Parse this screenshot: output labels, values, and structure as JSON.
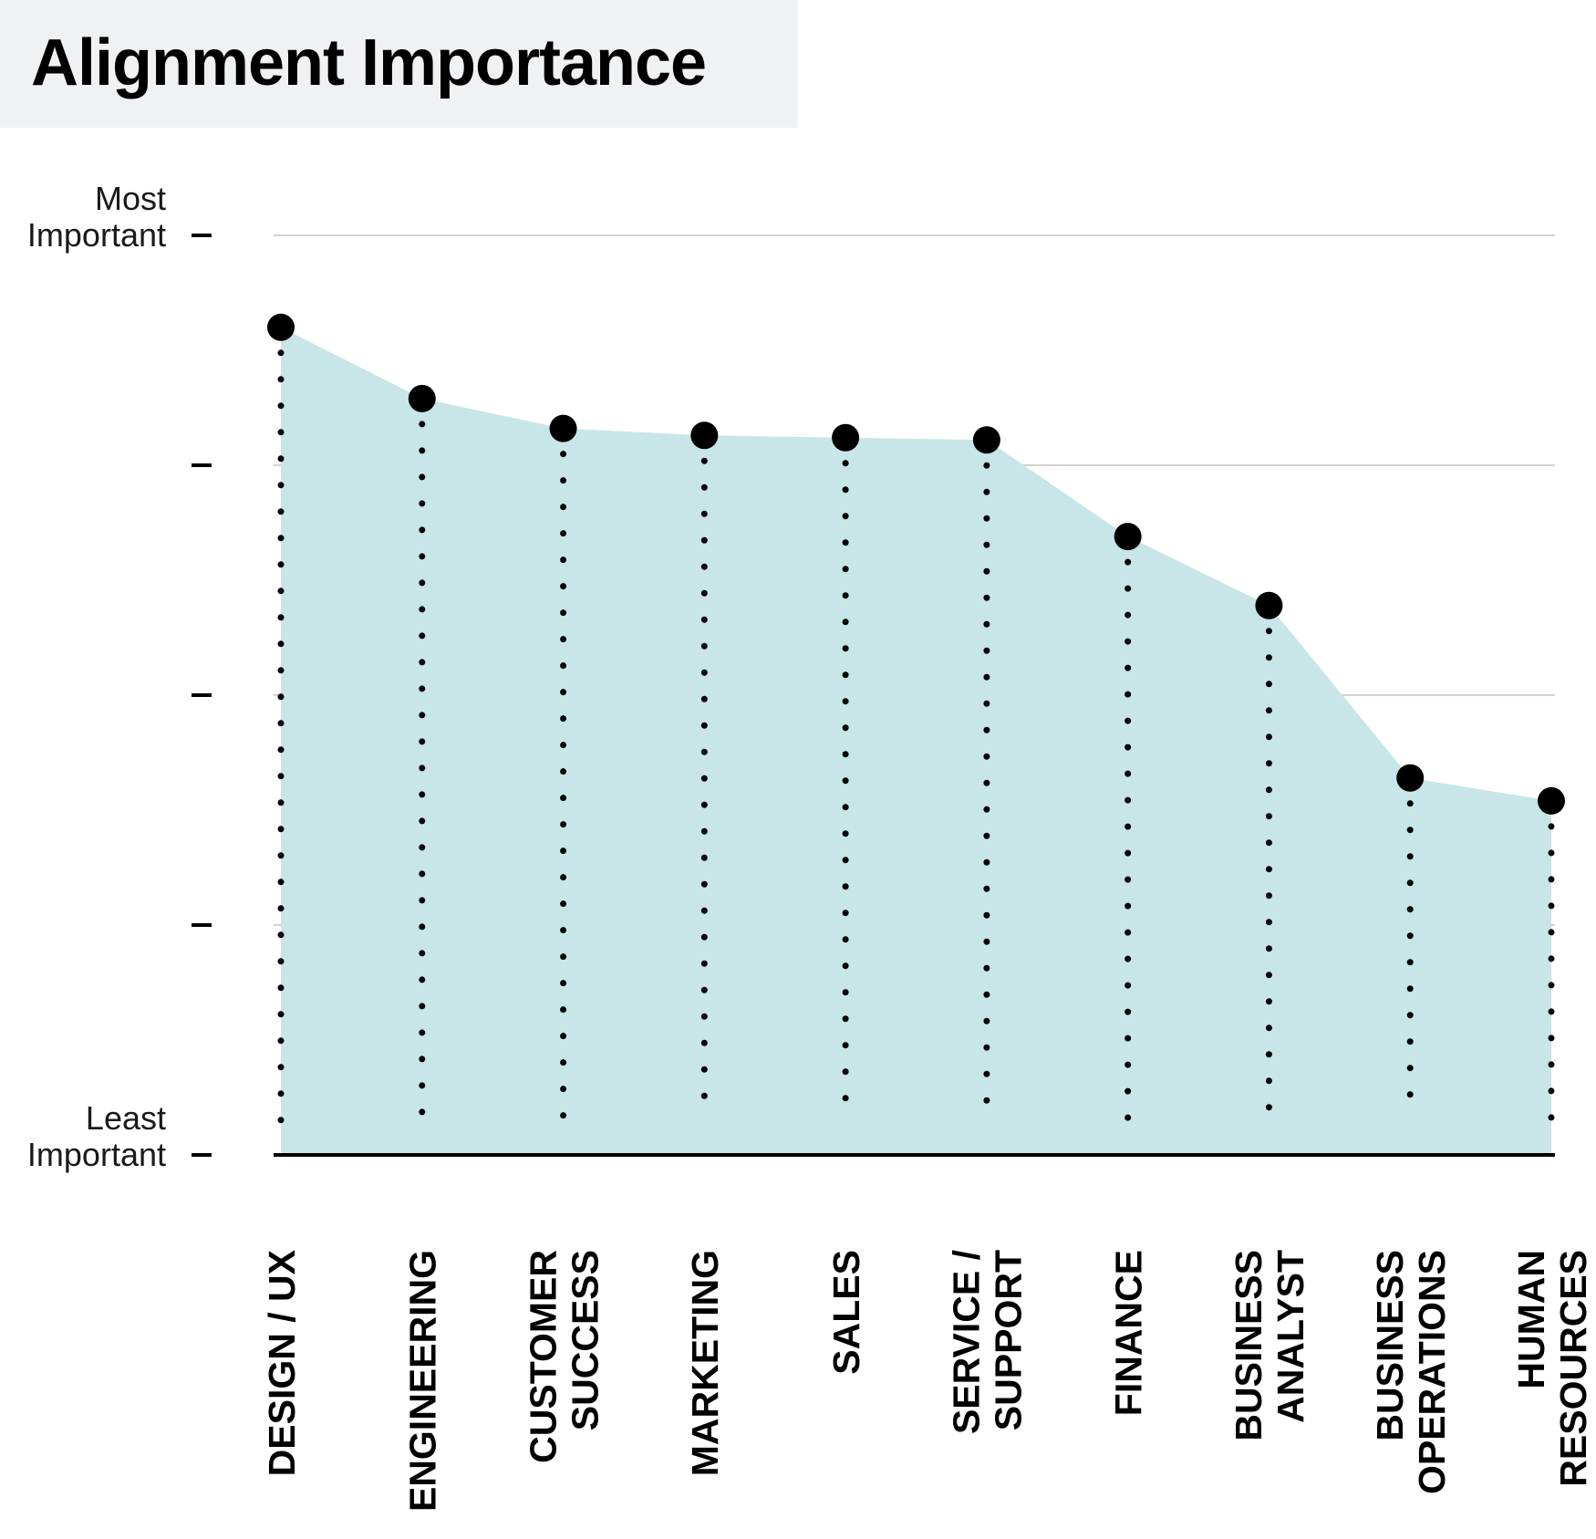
{
  "title": "Alignment Importance",
  "chart_data": {
    "type": "area",
    "title": "Alignment Importance",
    "xlabel": "",
    "ylabel": "",
    "categories": [
      "DESIGN / UX",
      "ENGINEERING",
      "CUSTOMER SUCCESS",
      "MARKETING",
      "SALES",
      "SERVICE / SUPPORT",
      "FINANCE",
      "BUSINESS ANALYST",
      "BUSINESS OPERATIONS",
      "HUMAN RESOURCES"
    ],
    "category_lines": [
      [
        "DESIGN / UX"
      ],
      [
        "ENGINEERING"
      ],
      [
        "CUSTOMER",
        "SUCCESS"
      ],
      [
        "MARKETING"
      ],
      [
        "SALES"
      ],
      [
        "SERVICE /",
        "SUPPORT"
      ],
      [
        "FINANCE"
      ],
      [
        "BUSINESS",
        "ANALYST"
      ],
      [
        "BUSINESS",
        "OPERATIONS"
      ],
      [
        "HUMAN",
        "RESOURCES"
      ]
    ],
    "values": [
      3.6,
      3.29,
      3.16,
      3.13,
      3.12,
      3.11,
      2.69,
      2.39,
      1.64,
      1.54
    ],
    "ylim": [
      0,
      4
    ],
    "y_ticks": [
      0,
      1,
      2,
      3,
      4
    ],
    "y_tick_labels": {
      "0": [
        "Least",
        "Important"
      ],
      "4": [
        "Most",
        "Important"
      ]
    },
    "grid": true,
    "legend": "none",
    "colors": {
      "fill": "#c8e5e8",
      "marker": "#000000",
      "grid": "#c4c4c4",
      "baseline": "#000000"
    }
  }
}
